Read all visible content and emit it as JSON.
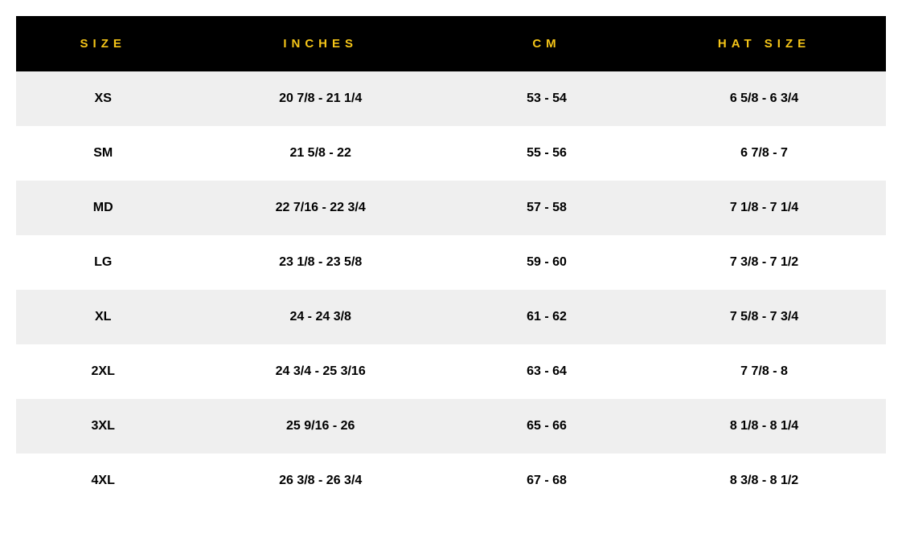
{
  "table": {
    "header_bg": "#000000",
    "header_text_color": "#f5c518",
    "row_alt_bg": "#efefef",
    "row_bg": "#ffffff",
    "cell_text_color": "#000000",
    "header_fontsize": 15,
    "header_letter_spacing": 6,
    "cell_fontsize": 16,
    "cell_fontweight": 800,
    "columns": [
      {
        "key": "size",
        "label": "SIZE",
        "width": "20%"
      },
      {
        "key": "inches",
        "label": "INCHES",
        "width": "30%"
      },
      {
        "key": "cm",
        "label": "CM",
        "width": "22%"
      },
      {
        "key": "hatsize",
        "label": "HAT SIZE",
        "width": "28%"
      }
    ],
    "rows": [
      {
        "size": "XS",
        "inches": "20 7/8 - 21 1/4",
        "cm": "53 - 54",
        "hatsize": "6 5/8 - 6 3/4"
      },
      {
        "size": "SM",
        "inches": "21 5/8 - 22",
        "cm": "55 - 56",
        "hatsize": "6 7/8 - 7"
      },
      {
        "size": "MD",
        "inches": "22 7/16 - 22 3/4",
        "cm": "57 - 58",
        "hatsize": "7 1/8 - 7 1/4"
      },
      {
        "size": "LG",
        "inches": "23 1/8 - 23 5/8",
        "cm": "59 - 60",
        "hatsize": "7 3/8 - 7 1/2"
      },
      {
        "size": "XL",
        "inches": "24 - 24 3/8",
        "cm": "61 - 62",
        "hatsize": "7 5/8 - 7 3/4"
      },
      {
        "size": "2XL",
        "inches": "24 3/4 - 25 3/16",
        "cm": "63 - 64",
        "hatsize": "7 7/8 - 8"
      },
      {
        "size": "3XL",
        "inches": "25 9/16 - 26",
        "cm": "65 - 66",
        "hatsize": "8 1/8 - 8 1/4"
      },
      {
        "size": "4XL",
        "inches": "26 3/8 - 26 3/4",
        "cm": "67 - 68",
        "hatsize": "8 3/8 - 8 1/2"
      }
    ]
  }
}
